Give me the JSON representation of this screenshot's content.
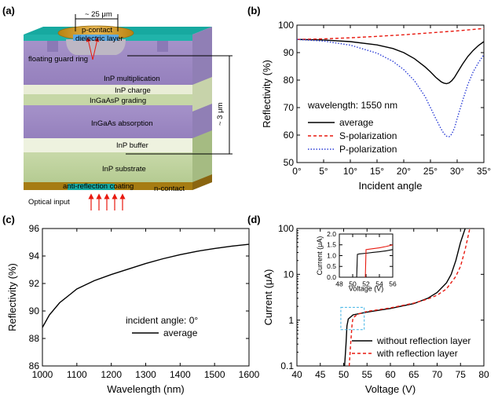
{
  "panels": {
    "a": "(a)",
    "b": "(b)",
    "c": "(c)",
    "d": "(d)"
  },
  "device": {
    "width_label": "~ 25 μm",
    "height_label": "~ 3 μm",
    "p_contact": "p-contact",
    "dielectric": "dielectric layer",
    "guard_ring": "floating guard ring",
    "multiplication": "InP multiplication",
    "charge": "InP charge",
    "grading": "InGaAsP grading",
    "absorption": "InGaAs absorption",
    "buffer": "InP buffer",
    "substrate": "InP substrate",
    "arc": "anti-reflection coating",
    "n_contact": "n-contact",
    "optical_input": "Optical input"
  },
  "chart_data": [
    {
      "panel": "b",
      "type": "line",
      "xlabel": "Incident angle",
      "ylabel": "Reflectivity (%)",
      "xlim": [
        0,
        35
      ],
      "ylim": [
        50,
        100
      ],
      "xticks": [
        "0°",
        "5°",
        "10°",
        "15°",
        "20°",
        "25°",
        "30°",
        "35°"
      ],
      "xtick_values": [
        0,
        5,
        10,
        15,
        20,
        25,
        30,
        35
      ],
      "yticks": [
        50,
        60,
        70,
        80,
        90,
        100
      ],
      "annotation": "wavelength: 1550 nm",
      "series": [
        {
          "name": "average",
          "color": "#000000",
          "dash": "solid",
          "x": [
            0,
            5,
            10,
            15,
            18,
            20,
            22,
            24,
            25,
            26,
            27,
            27.5,
            28,
            28.5,
            29,
            29.5,
            30,
            31,
            32,
            33,
            34,
            35
          ],
          "y": [
            94.8,
            94.6,
            94.0,
            92.8,
            91.5,
            90.0,
            87.8,
            84.8,
            83.0,
            81.0,
            79.4,
            78.9,
            78.7,
            79.0,
            79.8,
            81.0,
            82.6,
            85.8,
            88.6,
            90.8,
            92.6,
            94.0
          ]
        },
        {
          "name": "S-polarization",
          "color": "#e8190f",
          "dash": "dashed",
          "x": [
            0,
            5,
            10,
            15,
            20,
            25,
            30,
            35
          ],
          "y": [
            94.8,
            95.0,
            95.4,
            95.9,
            96.5,
            97.2,
            97.9,
            98.8
          ]
        },
        {
          "name": "P-polarization",
          "color": "#2b3dd6",
          "dash": "dotted",
          "x": [
            0,
            5,
            10,
            15,
            18,
            20,
            22,
            24,
            25,
            26,
            27,
            27.5,
            28,
            28.5,
            29,
            29.5,
            30,
            31,
            32,
            33,
            34,
            35
          ],
          "y": [
            94.8,
            94.2,
            92.7,
            89.8,
            86.8,
            83.8,
            79.8,
            74.0,
            70.0,
            66.0,
            62.2,
            60.6,
            59.6,
            59.4,
            60.4,
            62.6,
            66.0,
            72.4,
            78.4,
            83.0,
            86.4,
            89.2
          ]
        }
      ]
    },
    {
      "panel": "c",
      "type": "line",
      "xlabel": "Wavelength (nm)",
      "ylabel": "Reflectivity (%)",
      "xlim": [
        1000,
        1600
      ],
      "ylim": [
        86,
        96
      ],
      "xticks": [
        1000,
        1100,
        1200,
        1300,
        1400,
        1500,
        1600
      ],
      "yticks": [
        86,
        88,
        90,
        92,
        94,
        96
      ],
      "annotation": "incident angle: 0°",
      "series": [
        {
          "name": "average",
          "color": "#000000",
          "dash": "solid",
          "x": [
            1000,
            1020,
            1050,
            1080,
            1100,
            1150,
            1200,
            1250,
            1300,
            1350,
            1400,
            1450,
            1500,
            1550,
            1600
          ],
          "y": [
            88.8,
            89.7,
            90.6,
            91.2,
            91.6,
            92.2,
            92.65,
            93.05,
            93.45,
            93.8,
            94.1,
            94.35,
            94.55,
            94.72,
            94.85
          ]
        }
      ]
    },
    {
      "panel": "d",
      "type": "line",
      "xlabel": "Voltage (V)",
      "ylabel": "Current (μA)",
      "xlim": [
        40,
        80
      ],
      "ylim": [
        0.1,
        100
      ],
      "yscale": "log",
      "xticks": [
        40,
        45,
        50,
        55,
        60,
        65,
        70,
        75,
        80
      ],
      "yticks": [
        "0.1",
        "1",
        "10",
        "100"
      ],
      "ytick_values": [
        0.1,
        1,
        10,
        100
      ],
      "series": [
        {
          "name": "without reflection layer",
          "color": "#000000",
          "dash": "solid",
          "x": [
            50.2,
            50.5,
            50.7,
            51,
            52,
            55,
            60,
            65,
            68,
            70,
            72,
            73,
            74,
            75,
            76
          ],
          "y": [
            0.1,
            0.3,
            0.75,
            1.06,
            1.3,
            1.5,
            1.8,
            2.3,
            3.0,
            4.0,
            6.5,
            10,
            20,
            50,
            100
          ]
        },
        {
          "name": "with reflection layer",
          "color": "#e8190f",
          "dash": "dashed",
          "x": [
            51.2,
            51.5,
            51.8,
            52,
            53,
            55,
            60,
            65,
            68,
            70,
            72,
            74,
            75,
            76,
            77
          ],
          "y": [
            0.1,
            0.3,
            0.8,
            1.12,
            1.35,
            1.55,
            1.85,
            2.35,
            2.9,
            3.5,
            4.8,
            9,
            15,
            35,
            100
          ]
        }
      ],
      "inset": {
        "xlabel": "Voltage (V)",
        "ylabel": "Current (μA)",
        "xlim": [
          48,
          56
        ],
        "ylim": [
          0,
          2
        ],
        "xticks": [
          48,
          50,
          52,
          54,
          56
        ],
        "yticks": [
          "0.0",
          "0.5",
          "1.0",
          "1.5",
          "2.0"
        ],
        "ytick_values": [
          0,
          0.5,
          1,
          1.5,
          2
        ],
        "series": [
          {
            "name": "without reflection layer",
            "color": "#000000",
            "x": [
              50.6,
              50.7,
              51,
              52,
              53,
              54,
              55,
              56
            ],
            "y": [
              0,
              1.06,
              1.08,
              1.11,
              1.15,
              1.18,
              1.22,
              1.28
            ]
          },
          {
            "name": "with reflection layer",
            "color": "#e8190f",
            "x": [
              51.9,
              52,
              53,
              54,
              55,
              56
            ],
            "y": [
              0,
              1.28,
              1.32,
              1.36,
              1.42,
              1.5
            ]
          }
        ]
      }
    }
  ]
}
